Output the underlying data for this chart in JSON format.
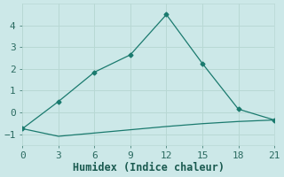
{
  "xlabel": "Humidex (Indice chaleur)",
  "x_main": [
    0,
    3,
    6,
    9,
    12,
    15,
    18,
    21
  ],
  "y_main": [
    -0.75,
    0.5,
    1.85,
    2.65,
    4.5,
    2.25,
    0.15,
    -0.35
  ],
  "x_flat": [
    0,
    3,
    6,
    9,
    12,
    15,
    18,
    21
  ],
  "y_flat": [
    -0.75,
    -1.1,
    -0.95,
    -0.8,
    -0.65,
    -0.52,
    -0.42,
    -0.35
  ],
  "line_color": "#1a7a6e",
  "bg_color": "#cce8e8",
  "grid_color": "#b8d8d4",
  "xlim": [
    0,
    21
  ],
  "ylim": [
    -1.5,
    5.0
  ],
  "xticks": [
    0,
    3,
    6,
    9,
    12,
    15,
    18,
    21
  ],
  "yticks": [
    -1,
    0,
    1,
    2,
    3,
    4
  ],
  "tick_color": "#2a6a60",
  "label_color": "#1a5a50",
  "fontsize": 8.5
}
